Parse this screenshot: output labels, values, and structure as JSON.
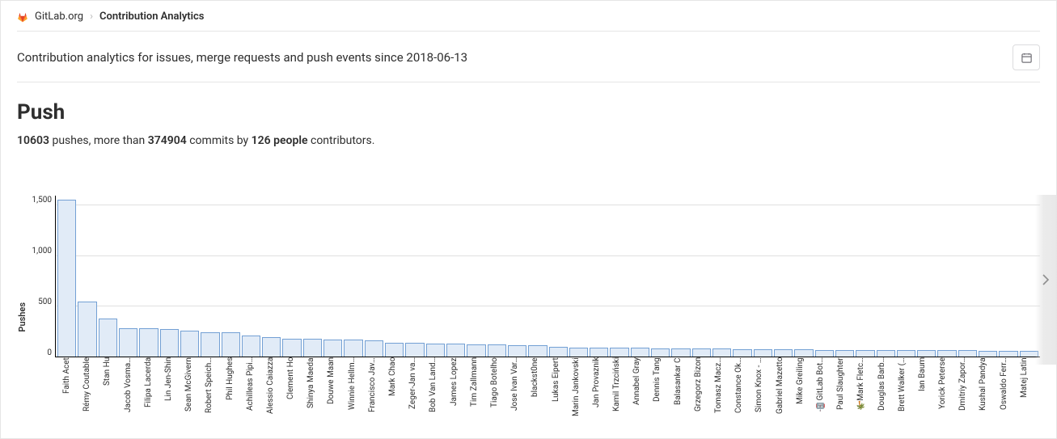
{
  "breadcrumb": {
    "org": "GitLab.org",
    "current": "Contribution Analytics"
  },
  "header": {
    "subtitle": "Contribution analytics for issues, merge requests and push events since 2018-06-13"
  },
  "push": {
    "title": "Push",
    "pushes_count": "10603",
    "pushes_label_after": " pushes, more than ",
    "commits_count": "374904",
    "commits_label_after": " commits by ",
    "people_count": "126 people",
    "people_label_after": " contributors."
  },
  "chart": {
    "type": "bar",
    "ylabel": "Pushes",
    "ylim_max": 1600,
    "yticks": [
      1500,
      1000,
      500,
      0
    ],
    "bar_fill": "#e1ebf7",
    "bar_stroke": "#73a0d4",
    "grid_color": "#e0e0e0",
    "background": "#ffffff",
    "data": [
      {
        "name": "Faith Acet",
        "value": 1560
      },
      {
        "name": "Rémy Coutable",
        "value": 550
      },
      {
        "name": "Stan Hu",
        "value": 380
      },
      {
        "name": "Jacob Vosma…",
        "value": 285
      },
      {
        "name": "Filipa Lacerda",
        "value": 280
      },
      {
        "name": "Lin Jen-Shin",
        "value": 270
      },
      {
        "name": "Sean McGivern",
        "value": 255
      },
      {
        "name": "Robert Speich…",
        "value": 245
      },
      {
        "name": "Phil Hughes",
        "value": 240
      },
      {
        "name": "Achilleas Pipi…",
        "value": 210
      },
      {
        "name": "Alessio Caiazza",
        "value": 195
      },
      {
        "name": "Clement Ho",
        "value": 180
      },
      {
        "name": "Shinya Maeda",
        "value": 175
      },
      {
        "name": "Douwe Maan",
        "value": 170
      },
      {
        "name": "Winnie Hellm…",
        "value": 165
      },
      {
        "name": "Francisco Jav…",
        "value": 160
      },
      {
        "name": "Mark Chao",
        "value": 140
      },
      {
        "name": "Zeger-Jan va…",
        "value": 135
      },
      {
        "name": "Bob Van Land…",
        "value": 130
      },
      {
        "name": "James Lopez",
        "value": 125
      },
      {
        "name": "Tim Zallmann",
        "value": 120
      },
      {
        "name": "Tiago Botelho",
        "value": 118
      },
      {
        "name": "Jose Ivan Var…",
        "value": 115
      },
      {
        "name": "blackst0ne",
        "value": 112
      },
      {
        "name": "Lukas Eipert",
        "value": 95
      },
      {
        "name": "Marin Jankovski",
        "value": 92
      },
      {
        "name": "Jan Provaznik",
        "value": 90
      },
      {
        "name": "Kamil Trzciński",
        "value": 88
      },
      {
        "name": "Annabel Gray",
        "value": 86
      },
      {
        "name": "Dennis Tang",
        "value": 84
      },
      {
        "name": "Balasankar C",
        "value": 82
      },
      {
        "name": "Grzegorz Bizon",
        "value": 80
      },
      {
        "name": "Tomasz Macz…",
        "value": 78
      },
      {
        "name": "Constance Ok…",
        "value": 76
      },
      {
        "name": "Simon Knox - …",
        "value": 74
      },
      {
        "name": "Gabriel Mazetto",
        "value": 72
      },
      {
        "name": "Mike Greiling",
        "value": 70
      },
      {
        "name": "🤖 GitLab Bot…",
        "value": 68
      },
      {
        "name": "Paul Slaughter",
        "value": 67
      },
      {
        "name": "🌴Mark Fletc…",
        "value": 66
      },
      {
        "name": "Douglas Barb…",
        "value": 65
      },
      {
        "name": "Brett Walker (…",
        "value": 64
      },
      {
        "name": "Ian Baum",
        "value": 63
      },
      {
        "name": "Yorick Peterse",
        "value": 62
      },
      {
        "name": "Dmitriy Zapor…",
        "value": 61
      },
      {
        "name": "Kushal Pandya",
        "value": 60
      },
      {
        "name": "Oswaldo Ferr…",
        "value": 59
      },
      {
        "name": "Matej Latin",
        "value": 58
      }
    ]
  }
}
